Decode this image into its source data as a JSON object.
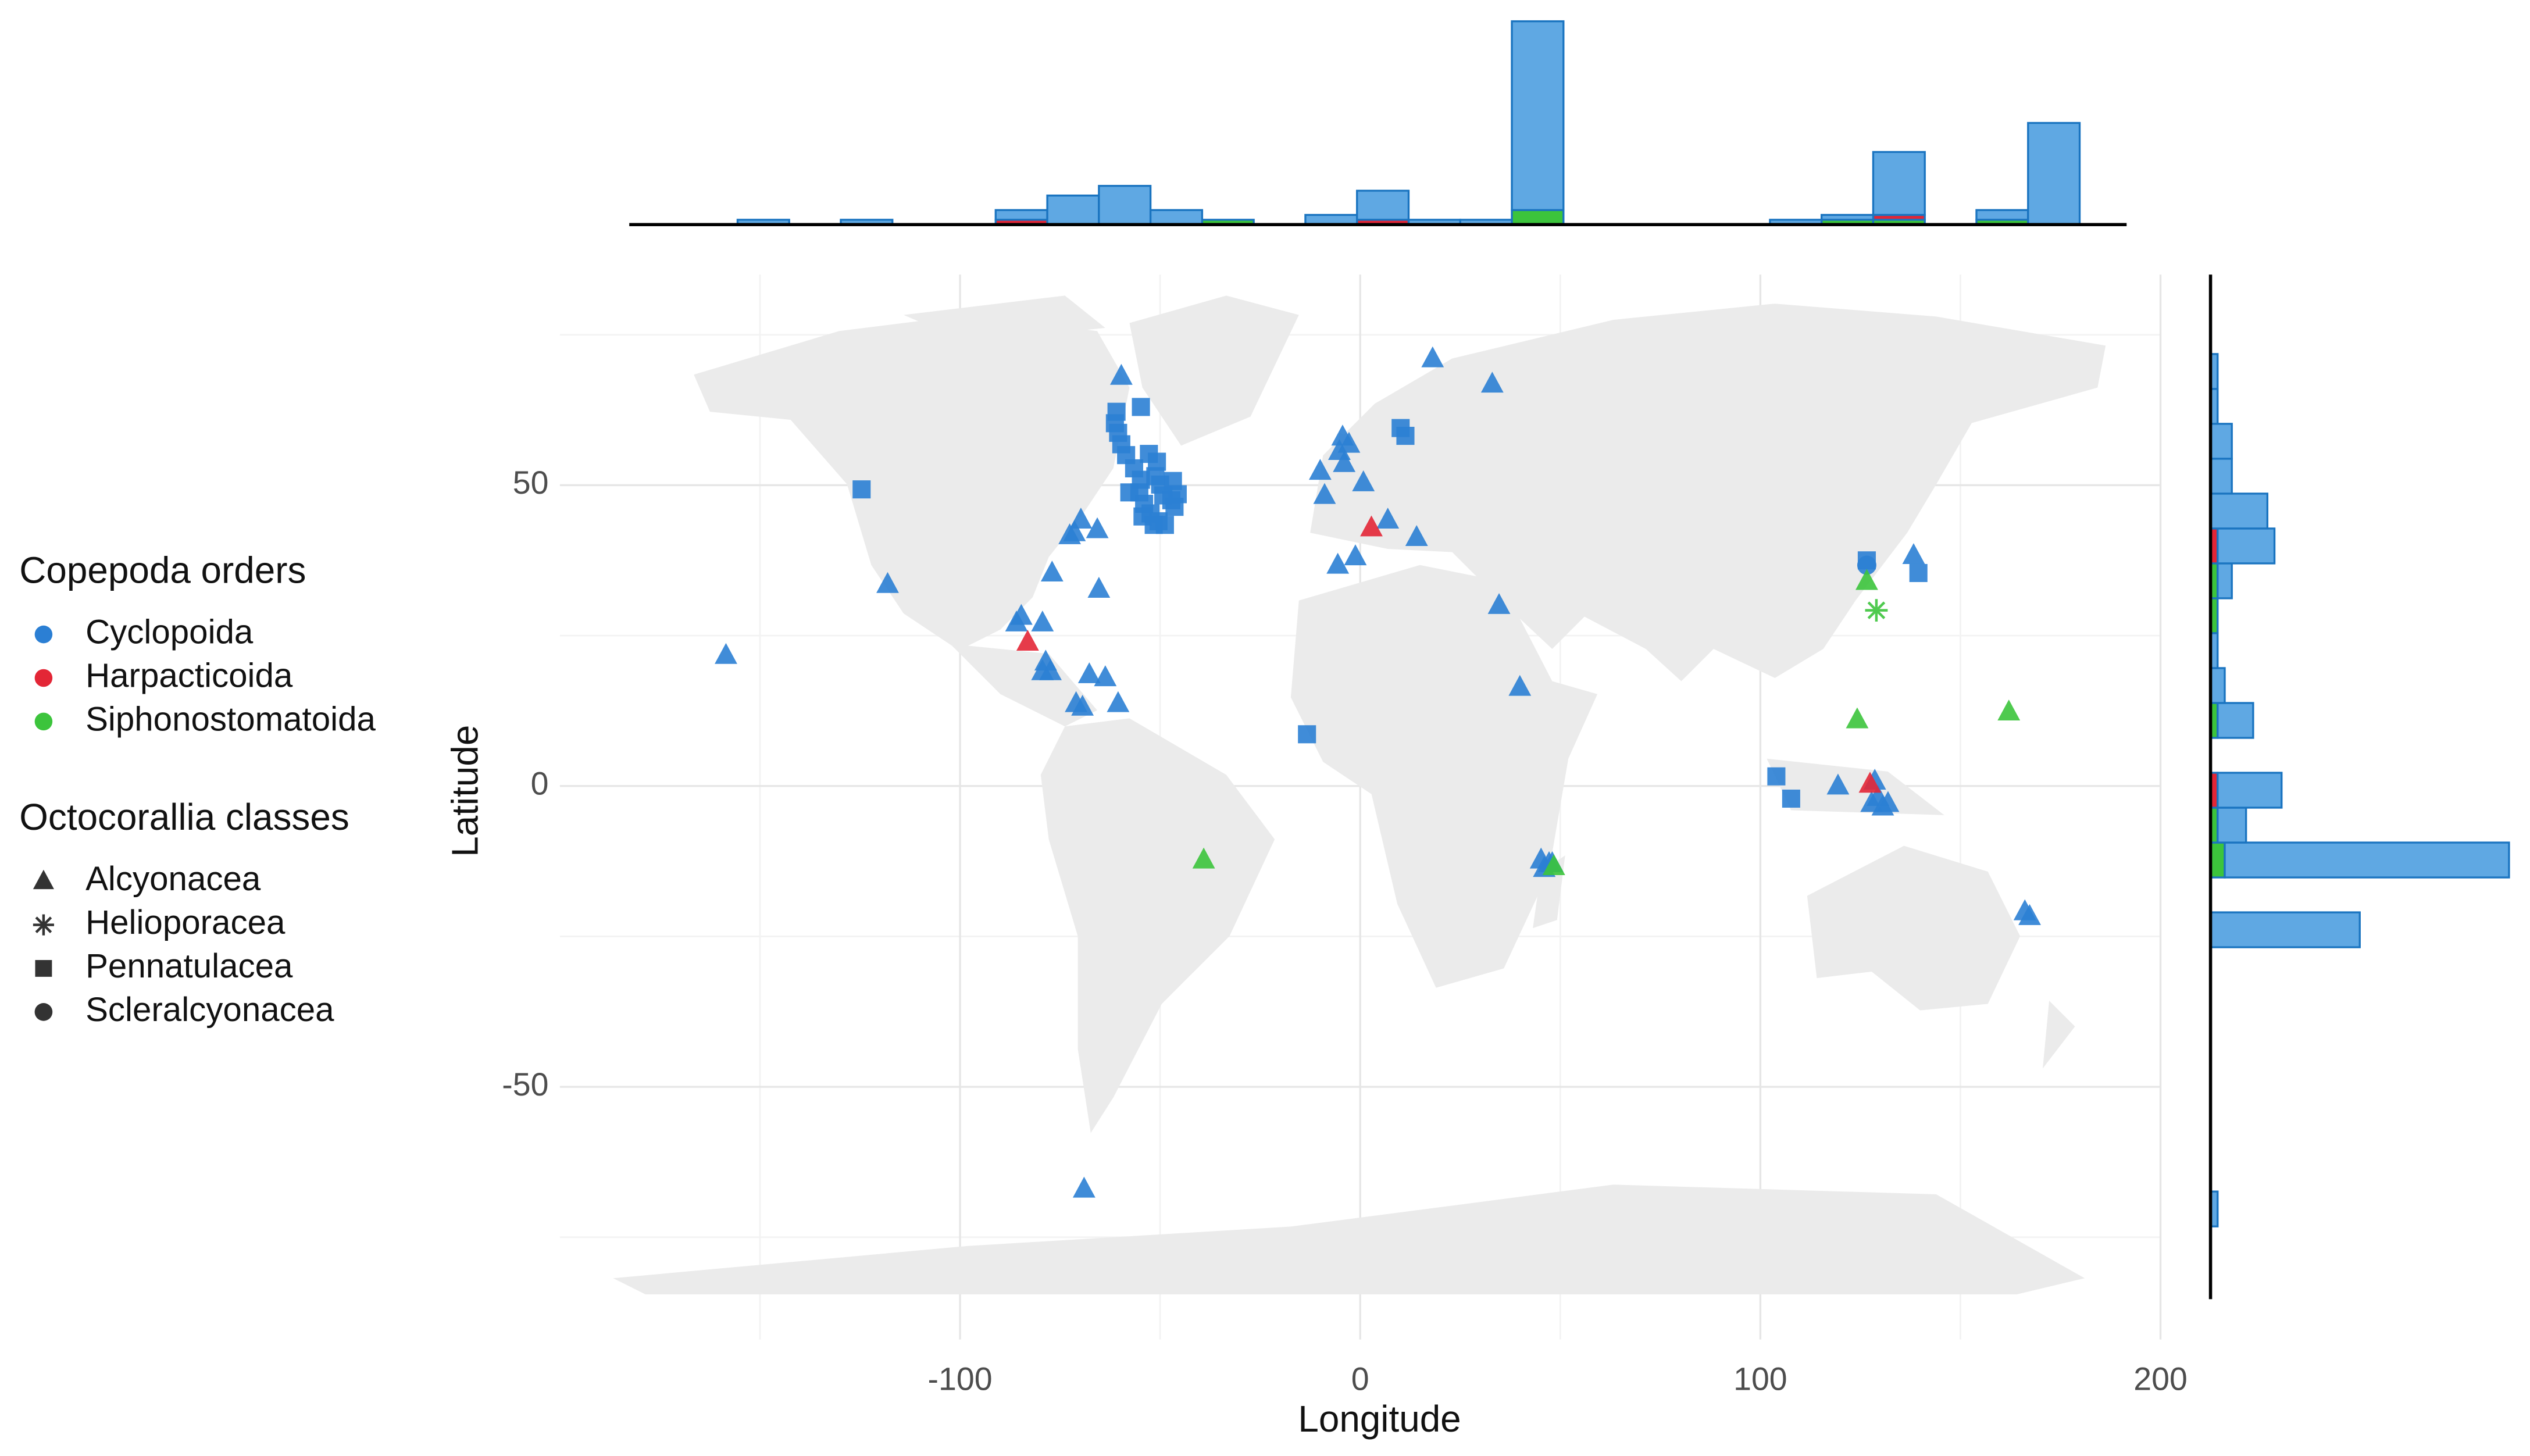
{
  "chart_data": [
    {
      "type": "scatter",
      "x_label": "Longitude",
      "y_label": "Latitude",
      "xlim": [
        -200,
        200
      ],
      "ylim": [
        -92,
        85
      ],
      "xticks": [
        -100,
        0,
        100,
        200
      ],
      "yticks": [
        -50,
        0,
        50
      ],
      "minor_xticks": [
        -150,
        -50,
        50,
        150
      ],
      "minor_yticks": [
        -75,
        -25,
        25,
        75
      ],
      "grid": true,
      "legend_title": "Copepoda orders",
      "series": [
        {
          "name": "Cyclopoida",
          "color": "#2b7fd4",
          "groups": [
            {
              "shape": "triangle",
              "x": [
                -158.5,
                -118.1,
                18.1,
                33,
                -59.7,
                -10,
                -8.9,
                -4.4,
                -2.8,
                -5.2,
                -4,
                0.8,
                6.9,
                14.1,
                -5.6,
                -1.2,
                -69.8,
                -71.4,
                -72.6,
                -65.7,
                -77,
                -65.3,
                -84.7,
                -85.9,
                -79.4,
                -78.6,
                -77.4,
                -79.4,
                -67.7,
                -63.7,
                -71,
                -69.4,
                -60.5,
                -69,
                34.7,
                39.9,
                138.3,
                119.4,
                128.6,
                129.4,
                130.6,
                127.8,
                131.9,
                45.2,
                47.2,
                48,
                46,
                166.1,
                167.3
              ],
              "y": [
                21.7,
                33.5,
                71,
                66.8,
                68.1,
                52.3,
                48.3,
                58,
                56.8,
                55.6,
                53.6,
                50.4,
                44.2,
                41.3,
                36.7,
                38.1,
                44.2,
                42.1,
                41.6,
                42.6,
                35.4,
                32.7,
                28.2,
                27.1,
                27.1,
                20.6,
                19,
                19,
                18.5,
                18,
                13.7,
                13.1,
                13.7,
                -67,
                30,
                16.4,
                38.3,
                0,
                0.8,
                -1.9,
                -3.5,
                -2.9,
                -2.9,
                -12.3,
                -12.9,
                -12.9,
                -13.7,
                -20.9,
                -21.7
              ]
            },
            {
              "shape": "square",
              "x": [
                -124.6,
                -60.9,
                -61.3,
                -60.5,
                -59.7,
                -58.5,
                -56.5,
                -54.8,
                -55.2,
                -54,
                -52.4,
                -50.4,
                -54.8,
                -54.4,
                -51.6,
                -48.8,
                -51.2,
                -50,
                -49.2,
                -47.2,
                -45.6,
                -46.4,
                -46.8,
                -50.8,
                -52.8,
                -57.7,
                -13.3,
                10.1,
                11.3,
                126.6,
                139.5,
                104,
                107.7
              ],
              "y": [
                49.3,
                62.2,
                60.3,
                58.7,
                56.8,
                55,
                52.8,
                50.9,
                48.8,
                46.9,
                45.3,
                44,
                63,
                44.8,
                43.4,
                43.4,
                51.5,
                50.1,
                48.3,
                47.5,
                48.5,
                46.4,
                50.7,
                53.9,
                55.2,
                48.8,
                8.6,
                59.5,
                58.2,
                37.5,
                35.4,
                1.6,
                -2.1
              ]
            },
            {
              "shape": "circle",
              "x": [
                126.6
              ],
              "y": [
                36.7
              ]
            }
          ]
        },
        {
          "name": "Harpacticoida",
          "color": "#e32636",
          "groups": [
            {
              "shape": "triangle",
              "x": [
                -83.1,
                2.8,
                127.4
              ],
              "y": [
                23.9,
                42.9,
                0.3
              ]
            }
          ]
        },
        {
          "name": "Siphonostomatoida",
          "color": "#3cc43c",
          "groups": [
            {
              "shape": "triangle",
              "x": [
                -39.1,
                126.6,
                124.2,
                162.1,
                48.4
              ],
              "y": [
                -12.3,
                34,
                11,
                12.3,
                -13.4
              ]
            },
            {
              "shape": "asterisk",
              "x": [
                129
              ],
              "y": [
                29.2
              ]
            }
          ]
        }
      ],
      "shape_legend": {
        "title": "Octocorallia classes",
        "items": [
          {
            "name": "Alcyonacea",
            "shape": "triangle"
          },
          {
            "name": "Helioporacea",
            "shape": "asterisk"
          },
          {
            "name": "Pennatulacea",
            "shape": "square"
          },
          {
            "name": "Scleralcyonacea",
            "shape": "circle"
          }
        ]
      }
    },
    {
      "type": "histogram",
      "orientation": "vertical",
      "ylim": [
        0,
        42
      ],
      "edge_color": "#1a74c0",
      "bins": [
        -168.5,
        -155.6,
        -142.7,
        -129.8,
        -116.9,
        -104,
        -91.1,
        -78.2,
        -65.3,
        -52.4,
        -39.5,
        -26.6,
        -13.7,
        -0.8,
        12.1,
        25,
        37.9,
        50.8,
        63.7,
        76.6,
        89.5,
        102.4,
        115.3,
        128.2,
        141.1,
        154,
        166.9,
        179.8
      ],
      "series": [
        {
          "color": "#3cc43c",
          "values": [
            0,
            0,
            0,
            0,
            0,
            0,
            0,
            0,
            0,
            0,
            1,
            0,
            0,
            0,
            0,
            0,
            3,
            0,
            0,
            0,
            0,
            0,
            1,
            1,
            0,
            1,
            0
          ]
        },
        {
          "color": "#e32636",
          "values": [
            0,
            0,
            0,
            0,
            0,
            0,
            1,
            0,
            0,
            0,
            0,
            0,
            0,
            1,
            0,
            0,
            0,
            0,
            0,
            0,
            0,
            0,
            0,
            1,
            0,
            0,
            0
          ]
        },
        {
          "color": "#5fa8e3",
          "values": [
            0,
            1,
            0,
            1,
            0,
            0,
            2,
            6,
            8,
            3,
            0,
            0,
            2,
            6,
            1,
            1,
            39,
            0,
            0,
            0,
            0,
            1,
            1,
            13,
            0,
            2,
            21
          ]
        }
      ]
    },
    {
      "type": "histogram",
      "orientation": "horizontal",
      "xlim": [
        0,
        42
      ],
      "edge_color": "#1a74c0",
      "bins": [
        -73.2,
        -67.4,
        -61.6,
        -55.8,
        -50,
        -44.2,
        -38.4,
        -32.6,
        -26.8,
        -21,
        -15.2,
        -9.4,
        -3.6,
        2.2,
        8,
        13.8,
        19.6,
        25.4,
        31.2,
        37,
        42.8,
        48.6,
        54.4,
        60.2,
        66,
        71.8
      ],
      "series": [
        {
          "color": "#3cc43c",
          "values": [
            0,
            0,
            0,
            0,
            0,
            0,
            0,
            0,
            0,
            0,
            2,
            1,
            0,
            0,
            1,
            0,
            0,
            1,
            1,
            0,
            0,
            0,
            0,
            0,
            0
          ]
        },
        {
          "color": "#e32636",
          "values": [
            0,
            0,
            0,
            0,
            0,
            0,
            0,
            0,
            0,
            0,
            0,
            0,
            1,
            0,
            0,
            0,
            0,
            0,
            0,
            1,
            0,
            0,
            0,
            0,
            0
          ]
        },
        {
          "color": "#5fa8e3",
          "values": [
            1,
            0,
            0,
            0,
            0,
            0,
            0,
            0,
            21,
            0,
            40,
            4,
            9,
            0,
            5,
            2,
            1,
            0,
            2,
            8,
            8,
            3,
            3,
            1,
            1
          ]
        }
      ]
    }
  ]
}
